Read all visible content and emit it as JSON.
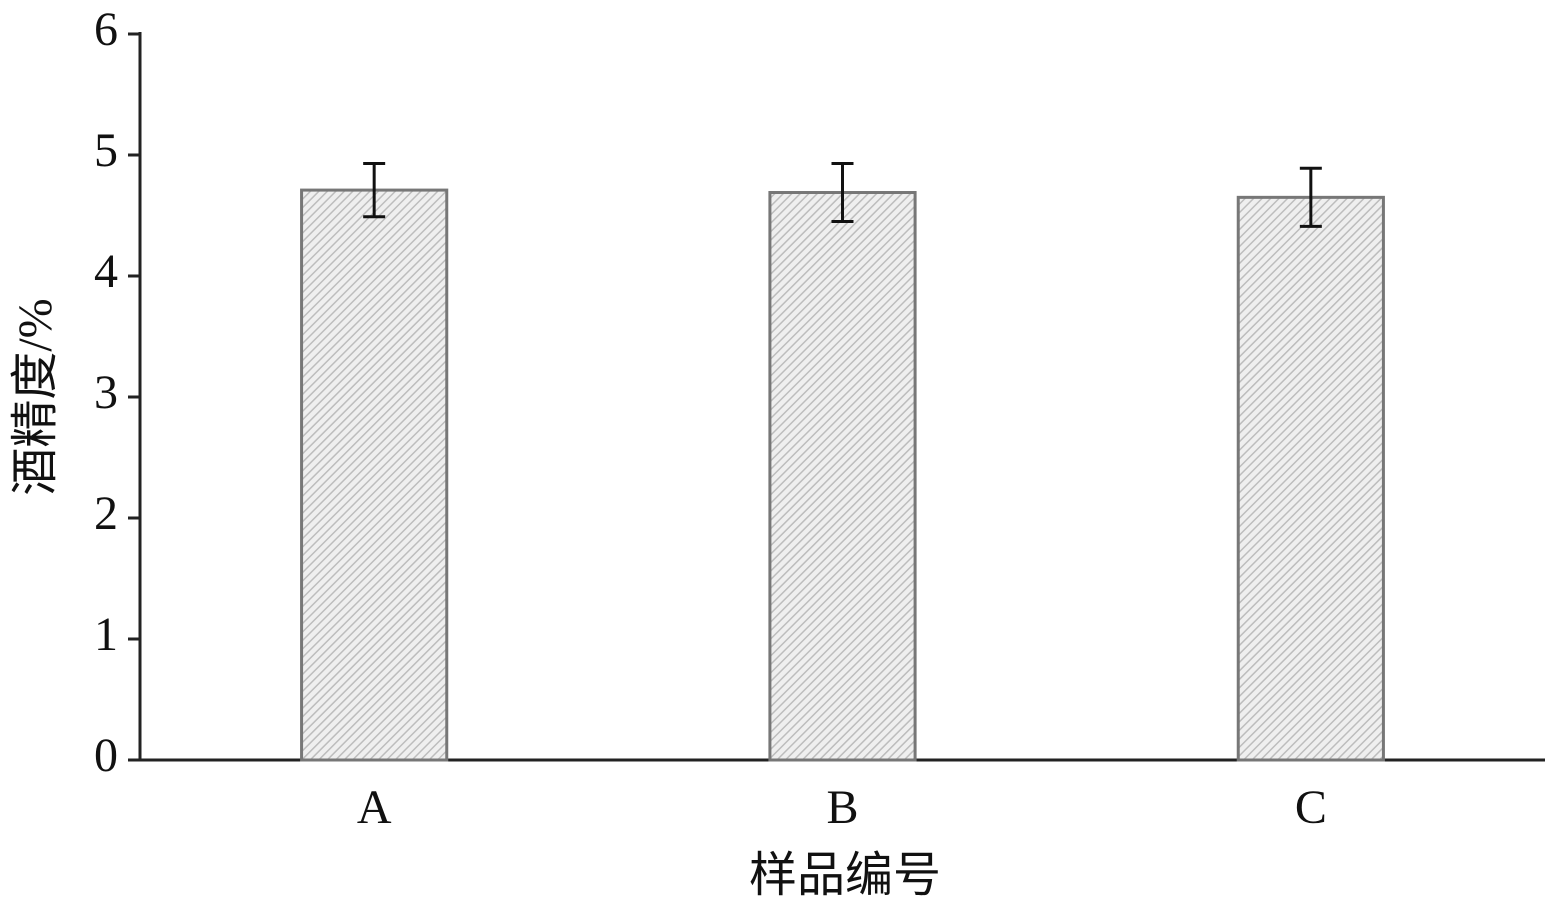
{
  "chart_data": {
    "type": "bar",
    "x_label": "样品编号",
    "y_label": "酒精度/%",
    "categories": [
      "A",
      "B",
      "C"
    ],
    "values": [
      4.71,
      4.69,
      4.65
    ],
    "errors": [
      0.22,
      0.24,
      0.24
    ],
    "color": "#d9d9d9",
    "ylim": [
      0,
      6
    ],
    "yticks": [
      0,
      1,
      2,
      3,
      4,
      5,
      6
    ],
    "grid": false
  }
}
